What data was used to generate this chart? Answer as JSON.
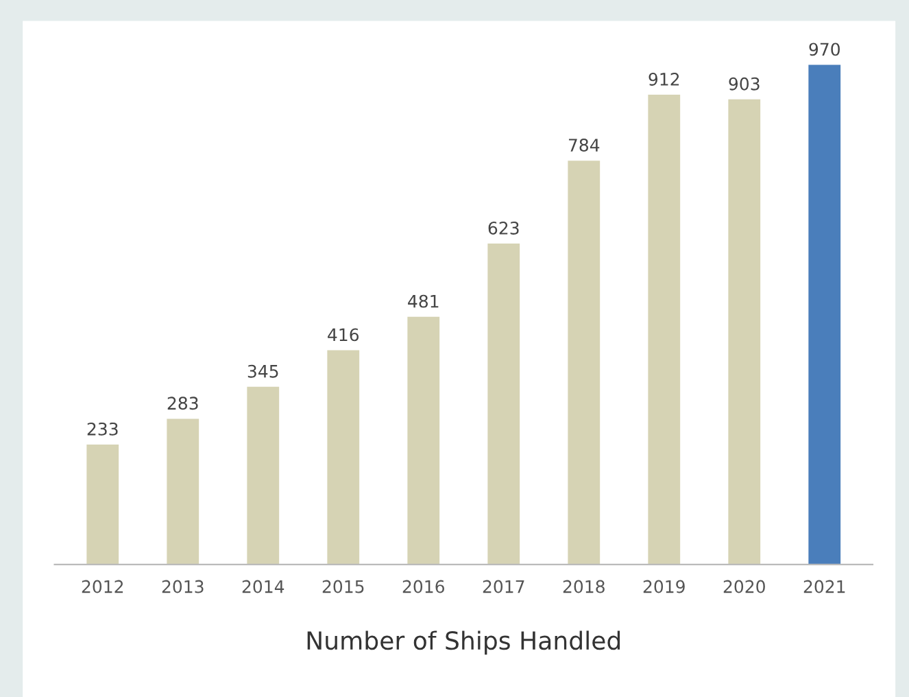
{
  "chart_data": {
    "type": "bar",
    "xlabel": "Number of Ships Handled",
    "categories": [
      "2012",
      "2013",
      "2014",
      "2015",
      "2016",
      "2017",
      "2018",
      "2019",
      "2020",
      "2021"
    ],
    "values": [
      233,
      283,
      345,
      416,
      481,
      623,
      784,
      912,
      903,
      970
    ],
    "colors": [
      "#d6d3b4",
      "#d6d3b4",
      "#d6d3b4",
      "#d6d3b4",
      "#d6d3b4",
      "#d6d3b4",
      "#d6d3b4",
      "#d6d3b4",
      "#d6d3b4",
      "#4a7ebb"
    ],
    "data_labels": true,
    "grid": false,
    "legend": false
  }
}
